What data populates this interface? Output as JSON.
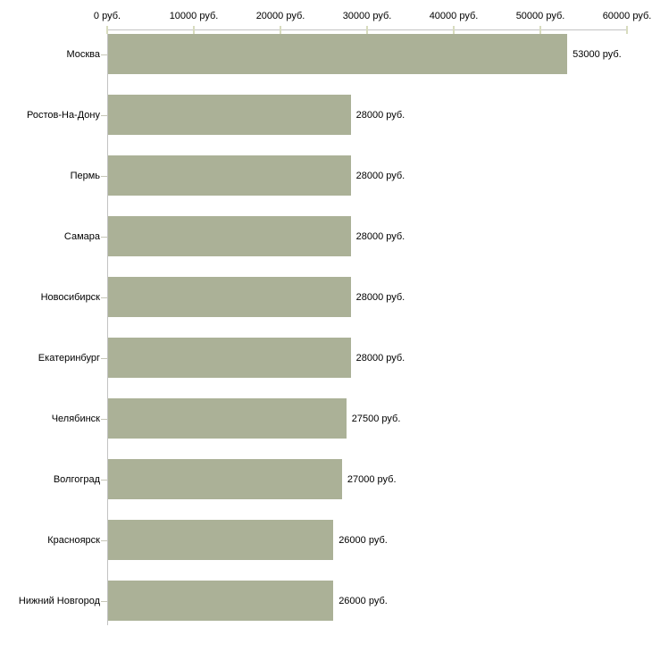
{
  "chart_data": {
    "type": "bar",
    "orientation": "horizontal",
    "title": "",
    "xlabel": "",
    "ylabel": "",
    "unit": "руб.",
    "categories": [
      "Москва",
      "Ростов-На-Дону",
      "Пермь",
      "Самара",
      "Новосибирск",
      "Екатеринбург",
      "Челябинск",
      "Волгоград",
      "Красноярск",
      "Нижний Новгород"
    ],
    "values": [
      53000,
      28000,
      28000,
      28000,
      28000,
      28000,
      27500,
      27000,
      26000,
      26000
    ],
    "value_labels": [
      "53000 руб.",
      "28000 руб.",
      "28000 руб.",
      "28000 руб.",
      "28000 руб.",
      "28000 руб.",
      "27500 руб.",
      "27000 руб.",
      "26000 руб.",
      "26000 руб."
    ],
    "x_ticks": [
      0,
      10000,
      20000,
      30000,
      40000,
      50000,
      60000
    ],
    "x_tick_labels": [
      "0 руб.",
      "10000 руб.",
      "20000 руб.",
      "30000 руб.",
      "40000 руб.",
      "50000 руб.",
      "60000 руб."
    ],
    "xlim": [
      0,
      60000
    ],
    "grid": false,
    "legend": false,
    "colors": {
      "bar": "#abb197",
      "axis_line": "#c3c3c3",
      "tick_mark": "#d8dcbe",
      "category_tick": "#c6c6b8",
      "text": "#000000",
      "background": "#ffffff"
    }
  }
}
